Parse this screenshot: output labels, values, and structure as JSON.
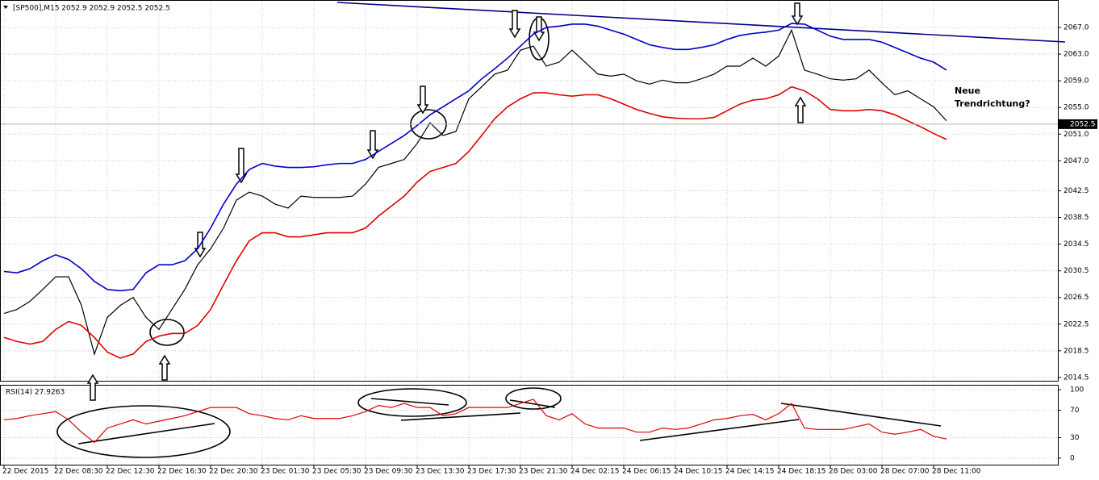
{
  "chart_data": {
    "type": "line",
    "title": "[SP500],M15  2052.9 2052.9 2052.5 2052.5",
    "categories": [
      "22 Dec 2015",
      null,
      null,
      null,
      "22 Dec 08:30",
      null,
      null,
      null,
      "22 Dec 12:30",
      null,
      null,
      null,
      "22 Dec 16:30",
      null,
      null,
      null,
      "22 Dec 20:30",
      null,
      null,
      null,
      "23 Dec 01:30",
      null,
      null,
      null,
      "23 Dec 05:30",
      null,
      null,
      null,
      "23 Dec 09:30",
      null,
      null,
      null,
      "23 Dec 13:30",
      null,
      null,
      null,
      "23 Dec 17:30",
      null,
      null,
      null,
      "23 Dec 21:30",
      null,
      null,
      null,
      "24 Dec 02:15",
      null,
      null,
      null,
      "24 Dec 06:15",
      null,
      null,
      null,
      "24 Dec 10:15",
      null,
      null,
      null,
      "24 Dec 14:15",
      null,
      null,
      null,
      "24 Dec 18:15",
      null,
      null,
      null,
      "28 Dec 03:00",
      null,
      null,
      null,
      "28 Dec 07:00",
      null,
      null,
      null,
      "28 Dec 11:00",
      null
    ],
    "series": [
      {
        "color": "#000000",
        "values": [
          2024.1,
          2024.7,
          2025.9,
          2027.7,
          2029.6,
          2029.6,
          2025.3,
          2018.0,
          2023.5,
          2025.3,
          2026.5,
          2023.5,
          2021.7,
          2024.7,
          2027.7,
          2031.4,
          2033.8,
          2036.9,
          2041.1,
          2042.3,
          2041.7,
          2040.5,
          2039.9,
          2041.7,
          2041.5,
          2041.5,
          2041.5,
          2041.7,
          2043.5,
          2046.0,
          2046.6,
          2047.2,
          2049.6,
          2052.7,
          2050.8,
          2051.4,
          2056.3,
          2058.1,
          2060.0,
          2060.6,
          2063.6,
          2064.2,
          2061.2,
          2061.8,
          2063.6,
          2061.8,
          2060.0,
          2059.7,
          2060.0,
          2059.0,
          2058.5,
          2059.1,
          2058.7,
          2058.7,
          2059.3,
          2060.0,
          2061.2,
          2061.2,
          2062.4,
          2061.2,
          2062.7,
          2066.6,
          2060.6,
          2060.0,
          2059.3,
          2059.1,
          2059.3,
          2060.6,
          2058.7,
          2056.9,
          2057.5,
          2056.3,
          2055.1,
          2053.0
        ]
      },
      {
        "color": "#0000c8",
        "values": [
          2030.4,
          2030.2,
          2030.8,
          2032.0,
          2032.9,
          2032.2,
          2030.8,
          2028.9,
          2027.7,
          2027.5,
          2027.7,
          2030.2,
          2031.4,
          2031.4,
          2032.0,
          2033.8,
          2036.9,
          2040.5,
          2043.5,
          2045.7,
          2046.6,
          2046.2,
          2046.0,
          2046.0,
          2046.1,
          2046.4,
          2046.6,
          2046.6,
          2047.2,
          2048.4,
          2049.6,
          2050.8,
          2052.3,
          2053.9,
          2055.1,
          2056.3,
          2057.5,
          2059.3,
          2060.8,
          2062.4,
          2064.2,
          2066.0,
          2067.0,
          2067.2,
          2067.5,
          2067.5,
          2067.2,
          2066.6,
          2066.0,
          2065.2,
          2064.4,
          2064.0,
          2063.7,
          2063.7,
          2064.0,
          2064.4,
          2065.2,
          2065.8,
          2066.1,
          2066.3,
          2066.6,
          2067.6,
          2067.5,
          2066.6,
          2065.7,
          2065.2,
          2065.2,
          2065.2,
          2064.8,
          2064.0,
          2063.2,
          2062.4,
          2061.8,
          2060.6
        ]
      },
      {
        "color": "#e00000",
        "values": [
          2020.5,
          2019.9,
          2019.5,
          2019.9,
          2021.7,
          2022.9,
          2022.3,
          2020.5,
          2018.3,
          2017.4,
          2018.0,
          2019.9,
          2020.7,
          2021.1,
          2021.1,
          2022.3,
          2024.7,
          2028.4,
          2032.0,
          2035.0,
          2036.2,
          2036.2,
          2035.6,
          2035.6,
          2035.9,
          2036.2,
          2036.2,
          2036.2,
          2036.9,
          2038.7,
          2040.2,
          2041.7,
          2043.8,
          2045.4,
          2046.0,
          2046.6,
          2048.4,
          2050.8,
          2053.3,
          2055.1,
          2056.3,
          2057.2,
          2057.2,
          2056.9,
          2056.7,
          2056.9,
          2056.9,
          2056.3,
          2055.5,
          2054.7,
          2054.1,
          2053.6,
          2053.4,
          2053.3,
          2053.3,
          2053.5,
          2054.5,
          2055.5,
          2056.1,
          2056.3,
          2056.9,
          2058.1,
          2057.5,
          2056.3,
          2054.7,
          2054.5,
          2054.5,
          2054.7,
          2054.5,
          2053.9,
          2053.0,
          2052.1,
          2051.1,
          2050.2
        ]
      }
    ],
    "ylim": [
      2014.0,
      2071.0
    ],
    "yticks": [
      {
        "value": 2014.5,
        "label": "2014.5"
      },
      {
        "value": 2018.5,
        "label": "2018.5"
      },
      {
        "value": 2022.5,
        "label": "2022.5"
      },
      {
        "value": 2026.5,
        "label": "2026.5"
      },
      {
        "value": 2030.5,
        "label": "2030.5"
      },
      {
        "value": 2034.5,
        "label": "2034.5"
      },
      {
        "value": 2038.5,
        "label": "2038.5"
      },
      {
        "value": 2042.5,
        "label": "2042.5"
      },
      {
        "value": 2047.0,
        "label": "2047.0"
      },
      {
        "value": 2051.0,
        "label": "2051.0"
      },
      {
        "value": 2055.0,
        "label": "2055.0"
      },
      {
        "value": 2059.0,
        "label": "2059.0"
      },
      {
        "value": 2063.0,
        "label": "2063.0"
      },
      {
        "value": 2067.0,
        "label": "2067.0"
      }
    ],
    "grid": true,
    "price_marker": {
      "value": 2052.5,
      "label": "2052.5"
    },
    "annotation": [
      "Neue",
      "Trendrichtung?"
    ],
    "rsi": {
      "label": "RSI(14) 27.9263",
      "color": "#e00000",
      "values": [
        56,
        58,
        62,
        65,
        68,
        56,
        38,
        23,
        44,
        50,
        56,
        50,
        54,
        58,
        62,
        68,
        74,
        74,
        74,
        65,
        62,
        58,
        56,
        62,
        58,
        58,
        58,
        62,
        68,
        77,
        74,
        80,
        74,
        74,
        62,
        65,
        74,
        74,
        74,
        74,
        80,
        86,
        62,
        56,
        65,
        50,
        44,
        44,
        44,
        38,
        38,
        44,
        42,
        44,
        50,
        56,
        58,
        62,
        64,
        56,
        65,
        80,
        44,
        42,
        42,
        42,
        46,
        50,
        38,
        35,
        38,
        42,
        32,
        28
      ],
      "ylim": [
        -9.5,
        106
      ],
      "yticks": [
        0,
        30,
        70,
        100
      ]
    }
  }
}
